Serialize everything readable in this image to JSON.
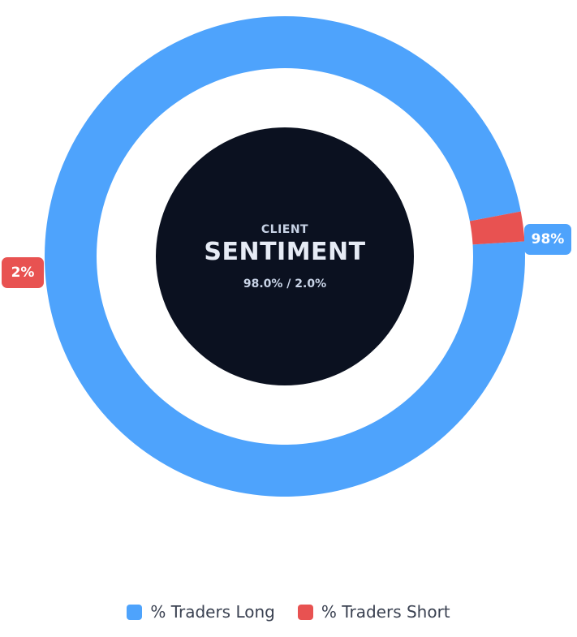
{
  "chart_data": {
    "type": "pie",
    "variant": "donut",
    "categories": [
      "% Traders Long",
      "% Traders Short"
    ],
    "values": [
      98.0,
      2.0
    ],
    "data_labels": [
      "98%",
      "2%"
    ],
    "colors": [
      "#4ea3fc",
      "#e85251"
    ],
    "center": {
      "subtitle": "CLIENT",
      "title": "SENTIMENT",
      "ratio": "98.0% / 2.0%",
      "background": "#0b1120"
    },
    "legend": {
      "placement": "bottom",
      "entries": [
        "% Traders Long",
        "% Traders Short"
      ]
    }
  }
}
